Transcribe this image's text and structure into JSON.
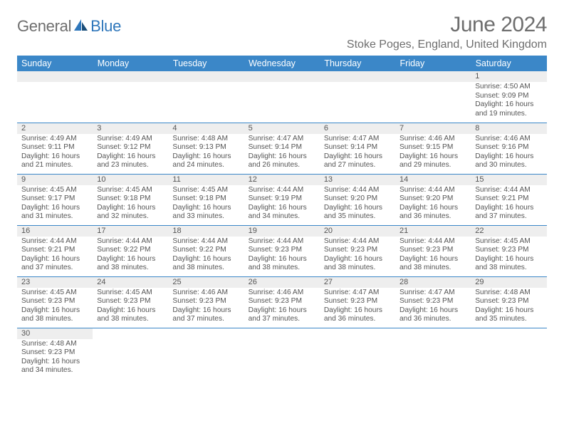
{
  "logo": {
    "part1": "General",
    "part2": "Blue"
  },
  "title": "June 2024",
  "location": "Stoke Poges, England, United Kingdom",
  "colors": {
    "header_bg": "#3b87c8",
    "header_text": "#ffffff",
    "strip_bg": "#eeeeee",
    "border": "#3b87c8",
    "body_text": "#555555",
    "logo_gray": "#6e6e6e",
    "logo_blue": "#2f77bb",
    "page_bg": "#ffffff"
  },
  "fonts": {
    "base_family": "Arial",
    "title_size_pt": 22,
    "location_size_pt": 12,
    "dayhdr_size_pt": 9.5,
    "body_size_pt": 7.7
  },
  "day_headers": [
    "Sunday",
    "Monday",
    "Tuesday",
    "Wednesday",
    "Thursday",
    "Friday",
    "Saturday"
  ],
  "weeks": [
    [
      null,
      null,
      null,
      null,
      null,
      null,
      {
        "n": "1",
        "sunrise": "Sunrise: 4:50 AM",
        "sunset": "Sunset: 9:09 PM",
        "daylight1": "Daylight: 16 hours",
        "daylight2": "and 19 minutes."
      }
    ],
    [
      {
        "n": "2",
        "sunrise": "Sunrise: 4:49 AM",
        "sunset": "Sunset: 9:11 PM",
        "daylight1": "Daylight: 16 hours",
        "daylight2": "and 21 minutes."
      },
      {
        "n": "3",
        "sunrise": "Sunrise: 4:49 AM",
        "sunset": "Sunset: 9:12 PM",
        "daylight1": "Daylight: 16 hours",
        "daylight2": "and 23 minutes."
      },
      {
        "n": "4",
        "sunrise": "Sunrise: 4:48 AM",
        "sunset": "Sunset: 9:13 PM",
        "daylight1": "Daylight: 16 hours",
        "daylight2": "and 24 minutes."
      },
      {
        "n": "5",
        "sunrise": "Sunrise: 4:47 AM",
        "sunset": "Sunset: 9:14 PM",
        "daylight1": "Daylight: 16 hours",
        "daylight2": "and 26 minutes."
      },
      {
        "n": "6",
        "sunrise": "Sunrise: 4:47 AM",
        "sunset": "Sunset: 9:14 PM",
        "daylight1": "Daylight: 16 hours",
        "daylight2": "and 27 minutes."
      },
      {
        "n": "7",
        "sunrise": "Sunrise: 4:46 AM",
        "sunset": "Sunset: 9:15 PM",
        "daylight1": "Daylight: 16 hours",
        "daylight2": "and 29 minutes."
      },
      {
        "n": "8",
        "sunrise": "Sunrise: 4:46 AM",
        "sunset": "Sunset: 9:16 PM",
        "daylight1": "Daylight: 16 hours",
        "daylight2": "and 30 minutes."
      }
    ],
    [
      {
        "n": "9",
        "sunrise": "Sunrise: 4:45 AM",
        "sunset": "Sunset: 9:17 PM",
        "daylight1": "Daylight: 16 hours",
        "daylight2": "and 31 minutes."
      },
      {
        "n": "10",
        "sunrise": "Sunrise: 4:45 AM",
        "sunset": "Sunset: 9:18 PM",
        "daylight1": "Daylight: 16 hours",
        "daylight2": "and 32 minutes."
      },
      {
        "n": "11",
        "sunrise": "Sunrise: 4:45 AM",
        "sunset": "Sunset: 9:18 PM",
        "daylight1": "Daylight: 16 hours",
        "daylight2": "and 33 minutes."
      },
      {
        "n": "12",
        "sunrise": "Sunrise: 4:44 AM",
        "sunset": "Sunset: 9:19 PM",
        "daylight1": "Daylight: 16 hours",
        "daylight2": "and 34 minutes."
      },
      {
        "n": "13",
        "sunrise": "Sunrise: 4:44 AM",
        "sunset": "Sunset: 9:20 PM",
        "daylight1": "Daylight: 16 hours",
        "daylight2": "and 35 minutes."
      },
      {
        "n": "14",
        "sunrise": "Sunrise: 4:44 AM",
        "sunset": "Sunset: 9:20 PM",
        "daylight1": "Daylight: 16 hours",
        "daylight2": "and 36 minutes."
      },
      {
        "n": "15",
        "sunrise": "Sunrise: 4:44 AM",
        "sunset": "Sunset: 9:21 PM",
        "daylight1": "Daylight: 16 hours",
        "daylight2": "and 37 minutes."
      }
    ],
    [
      {
        "n": "16",
        "sunrise": "Sunrise: 4:44 AM",
        "sunset": "Sunset: 9:21 PM",
        "daylight1": "Daylight: 16 hours",
        "daylight2": "and 37 minutes."
      },
      {
        "n": "17",
        "sunrise": "Sunrise: 4:44 AM",
        "sunset": "Sunset: 9:22 PM",
        "daylight1": "Daylight: 16 hours",
        "daylight2": "and 38 minutes."
      },
      {
        "n": "18",
        "sunrise": "Sunrise: 4:44 AM",
        "sunset": "Sunset: 9:22 PM",
        "daylight1": "Daylight: 16 hours",
        "daylight2": "and 38 minutes."
      },
      {
        "n": "19",
        "sunrise": "Sunrise: 4:44 AM",
        "sunset": "Sunset: 9:23 PM",
        "daylight1": "Daylight: 16 hours",
        "daylight2": "and 38 minutes."
      },
      {
        "n": "20",
        "sunrise": "Sunrise: 4:44 AM",
        "sunset": "Sunset: 9:23 PM",
        "daylight1": "Daylight: 16 hours",
        "daylight2": "and 38 minutes."
      },
      {
        "n": "21",
        "sunrise": "Sunrise: 4:44 AM",
        "sunset": "Sunset: 9:23 PM",
        "daylight1": "Daylight: 16 hours",
        "daylight2": "and 38 minutes."
      },
      {
        "n": "22",
        "sunrise": "Sunrise: 4:45 AM",
        "sunset": "Sunset: 9:23 PM",
        "daylight1": "Daylight: 16 hours",
        "daylight2": "and 38 minutes."
      }
    ],
    [
      {
        "n": "23",
        "sunrise": "Sunrise: 4:45 AM",
        "sunset": "Sunset: 9:23 PM",
        "daylight1": "Daylight: 16 hours",
        "daylight2": "and 38 minutes."
      },
      {
        "n": "24",
        "sunrise": "Sunrise: 4:45 AM",
        "sunset": "Sunset: 9:23 PM",
        "daylight1": "Daylight: 16 hours",
        "daylight2": "and 38 minutes."
      },
      {
        "n": "25",
        "sunrise": "Sunrise: 4:46 AM",
        "sunset": "Sunset: 9:23 PM",
        "daylight1": "Daylight: 16 hours",
        "daylight2": "and 37 minutes."
      },
      {
        "n": "26",
        "sunrise": "Sunrise: 4:46 AM",
        "sunset": "Sunset: 9:23 PM",
        "daylight1": "Daylight: 16 hours",
        "daylight2": "and 37 minutes."
      },
      {
        "n": "27",
        "sunrise": "Sunrise: 4:47 AM",
        "sunset": "Sunset: 9:23 PM",
        "daylight1": "Daylight: 16 hours",
        "daylight2": "and 36 minutes."
      },
      {
        "n": "28",
        "sunrise": "Sunrise: 4:47 AM",
        "sunset": "Sunset: 9:23 PM",
        "daylight1": "Daylight: 16 hours",
        "daylight2": "and 36 minutes."
      },
      {
        "n": "29",
        "sunrise": "Sunrise: 4:48 AM",
        "sunset": "Sunset: 9:23 PM",
        "daylight1": "Daylight: 16 hours",
        "daylight2": "and 35 minutes."
      }
    ],
    [
      {
        "n": "30",
        "sunrise": "Sunrise: 4:48 AM",
        "sunset": "Sunset: 9:23 PM",
        "daylight1": "Daylight: 16 hours",
        "daylight2": "and 34 minutes."
      },
      null,
      null,
      null,
      null,
      null,
      null
    ]
  ]
}
